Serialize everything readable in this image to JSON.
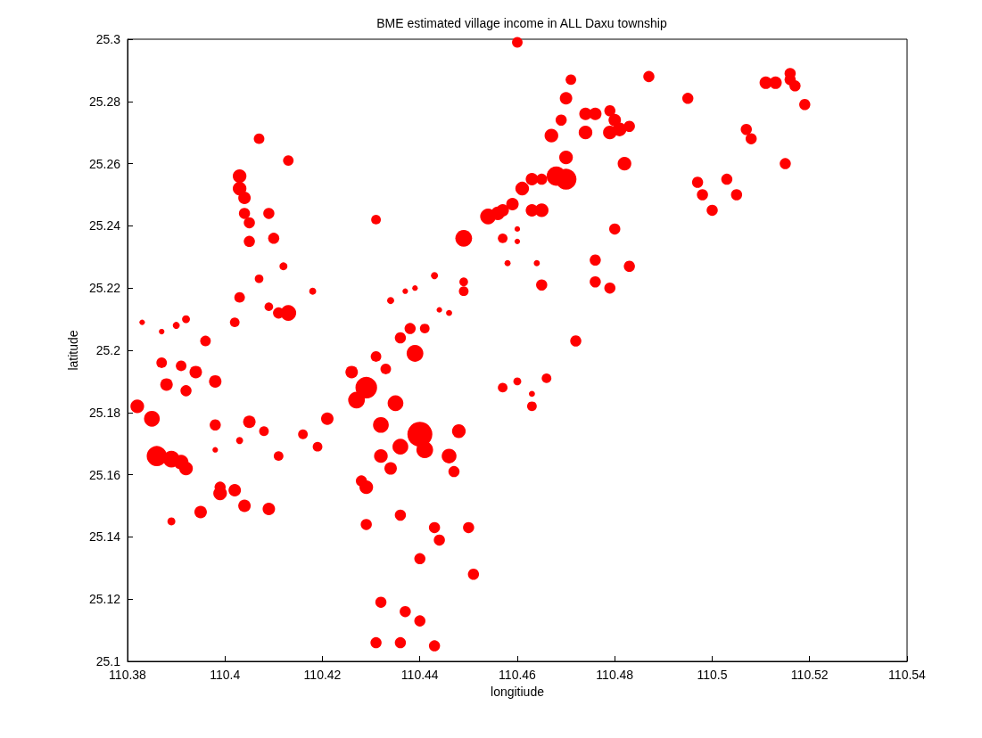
{
  "chart_data": {
    "type": "bubble",
    "title": "BME estimated village income in ALL Daxu township",
    "xlabel": "longitiude",
    "ylabel": "latitude",
    "color": "#ff0000",
    "marker": "circle",
    "grid": false,
    "xlim": [
      110.38,
      110.54
    ],
    "xticks": [
      110.38,
      110.4,
      110.42,
      110.44,
      110.46,
      110.48,
      110.5,
      110.52,
      110.54
    ],
    "ylim": [
      25.1,
      25.3
    ],
    "yticks": [
      25.1,
      25.12,
      25.14,
      25.16,
      25.18,
      25.2,
      25.22,
      25.24,
      25.26,
      25.28,
      25.3
    ],
    "x": [
      110.383,
      110.387,
      110.39,
      110.392,
      110.387,
      110.391,
      110.394,
      110.388,
      110.392,
      110.398,
      110.396,
      110.382,
      110.385,
      110.386,
      110.389,
      110.391,
      110.392,
      110.398,
      110.398,
      110.403,
      110.405,
      110.408,
      110.411,
      110.416,
      110.419,
      110.421,
      110.389,
      110.395,
      110.399,
      110.399,
      110.402,
      110.404,
      110.409,
      110.407,
      110.413,
      110.403,
      110.403,
      110.404,
      110.404,
      110.409,
      110.405,
      110.405,
      110.41,
      110.412,
      110.407,
      110.403,
      110.402,
      110.409,
      110.411,
      110.413,
      110.418,
      110.431,
      110.434,
      110.437,
      110.439,
      110.443,
      110.444,
      110.446,
      110.449,
      110.449,
      110.449,
      110.426,
      110.429,
      110.427,
      110.431,
      110.433,
      110.436,
      110.438,
      110.441,
      110.439,
      110.435,
      110.432,
      110.44,
      110.441,
      110.436,
      110.432,
      110.434,
      110.446,
      110.448,
      110.447,
      110.428,
      110.429,
      110.429,
      110.436,
      110.443,
      110.444,
      110.45,
      110.44,
      110.451,
      110.432,
      110.437,
      110.44,
      110.431,
      110.436,
      110.443,
      110.457,
      110.46,
      110.463,
      110.463,
      110.466,
      110.472,
      110.46,
      110.471,
      110.47,
      110.469,
      110.467,
      110.474,
      110.476,
      110.474,
      110.479,
      110.48,
      110.479,
      110.481,
      110.483,
      110.482,
      110.47,
      110.468,
      110.47,
      110.465,
      110.463,
      110.461,
      110.459,
      110.457,
      110.454,
      110.456,
      110.463,
      110.465,
      110.487,
      110.495,
      110.457,
      110.46,
      110.46,
      110.458,
      110.464,
      110.465,
      110.476,
      110.476,
      110.479,
      110.483,
      110.48,
      110.511,
      110.513,
      110.516,
      110.516,
      110.517,
      110.519,
      110.507,
      110.508,
      110.515,
      110.497,
      110.498,
      110.5,
      110.503,
      110.505
    ],
    "values": [
      25.209,
      25.206,
      25.208,
      25.21,
      25.196,
      25.195,
      25.193,
      25.189,
      25.187,
      25.19,
      25.203,
      25.182,
      25.178,
      25.166,
      25.165,
      25.164,
      25.162,
      25.176,
      25.168,
      25.171,
      25.177,
      25.174,
      25.166,
      25.173,
      25.169,
      25.178,
      25.145,
      25.148,
      25.154,
      25.156,
      25.155,
      25.15,
      25.149,
      25.268,
      25.261,
      25.256,
      25.252,
      25.249,
      25.244,
      25.244,
      25.241,
      25.235,
      25.236,
      25.227,
      25.223,
      25.217,
      25.209,
      25.214,
      25.212,
      25.212,
      25.219,
      25.242,
      25.216,
      25.219,
      25.22,
      25.224,
      25.213,
      25.212,
      25.222,
      25.219,
      25.236,
      25.193,
      25.188,
      25.184,
      25.198,
      25.194,
      25.204,
      25.207,
      25.207,
      25.199,
      25.183,
      25.176,
      25.173,
      25.168,
      25.169,
      25.166,
      25.162,
      25.166,
      25.174,
      25.161,
      25.158,
      25.156,
      25.144,
      25.147,
      25.143,
      25.139,
      25.143,
      25.133,
      25.128,
      25.119,
      25.116,
      25.113,
      25.106,
      25.106,
      25.105,
      25.188,
      25.19,
      25.186,
      25.182,
      25.191,
      25.203,
      25.299,
      25.287,
      25.281,
      25.274,
      25.269,
      25.276,
      25.276,
      25.27,
      25.277,
      25.274,
      25.27,
      25.271,
      25.272,
      25.26,
      25.262,
      25.256,
      25.255,
      25.255,
      25.255,
      25.252,
      25.247,
      25.245,
      25.243,
      25.244,
      25.245,
      25.245,
      25.288,
      25.281,
      25.236,
      25.239,
      25.235,
      25.228,
      25.228,
      25.221,
      25.229,
      25.222,
      25.22,
      25.227,
      25.239,
      25.286,
      25.286,
      25.289,
      25.287,
      25.285,
      25.279,
      25.271,
      25.268,
      25.26,
      25.254,
      25.25,
      25.245,
      25.255,
      25.25
    ],
    "sizes": [
      0.05,
      0.05,
      0.08,
      0.1,
      0.18,
      0.18,
      0.25,
      0.25,
      0.2,
      0.25,
      0.18,
      0.3,
      0.4,
      0.65,
      0.45,
      0.35,
      0.3,
      0.2,
      0.05,
      0.08,
      0.25,
      0.15,
      0.15,
      0.15,
      0.15,
      0.25,
      0.1,
      0.25,
      0.3,
      0.2,
      0.25,
      0.25,
      0.25,
      0.18,
      0.18,
      0.3,
      0.3,
      0.25,
      0.2,
      0.2,
      0.2,
      0.2,
      0.2,
      0.1,
      0.12,
      0.18,
      0.15,
      0.12,
      0.2,
      0.4,
      0.08,
      0.15,
      0.08,
      0.05,
      0.05,
      0.08,
      0.05,
      0.06,
      0.12,
      0.15,
      0.45,
      0.25,
      0.75,
      0.45,
      0.18,
      0.18,
      0.2,
      0.2,
      0.15,
      0.45,
      0.4,
      0.4,
      1,
      0.45,
      0.4,
      0.3,
      0.25,
      0.35,
      0.3,
      0.2,
      0.2,
      0.3,
      0.2,
      0.2,
      0.2,
      0.2,
      0.2,
      0.2,
      0.2,
      0.2,
      0.2,
      0.2,
      0.2,
      0.2,
      0.2,
      0.15,
      0.1,
      0.06,
      0.15,
      0.15,
      0.2,
      0.18,
      0.18,
      0.25,
      0.2,
      0.3,
      0.25,
      0.25,
      0.3,
      0.2,
      0.25,
      0.3,
      0.3,
      0.2,
      0.3,
      0.3,
      0.6,
      0.7,
      0.2,
      0.25,
      0.3,
      0.25,
      0.25,
      0.4,
      0.3,
      0.25,
      0.3,
      0.2,
      0.2,
      0.15,
      0.05,
      0.05,
      0.06,
      0.06,
      0.2,
      0.2,
      0.2,
      0.2,
      0.2,
      0.2,
      0.25,
      0.25,
      0.2,
      0.2,
      0.2,
      0.2,
      0.2,
      0.2,
      0.2,
      0.2,
      0.2,
      0.2,
      0.2,
      0.2
    ]
  }
}
